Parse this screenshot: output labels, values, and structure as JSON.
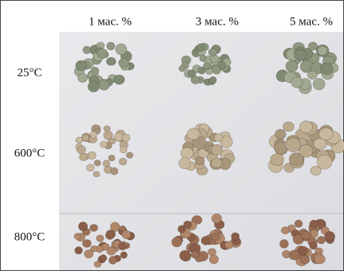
{
  "columns": [
    "1 мас. %",
    "3 мас. %",
    "5 мас. %"
  ],
  "rows": [
    "25°C",
    "600°C",
    "800°C"
  ]
}
